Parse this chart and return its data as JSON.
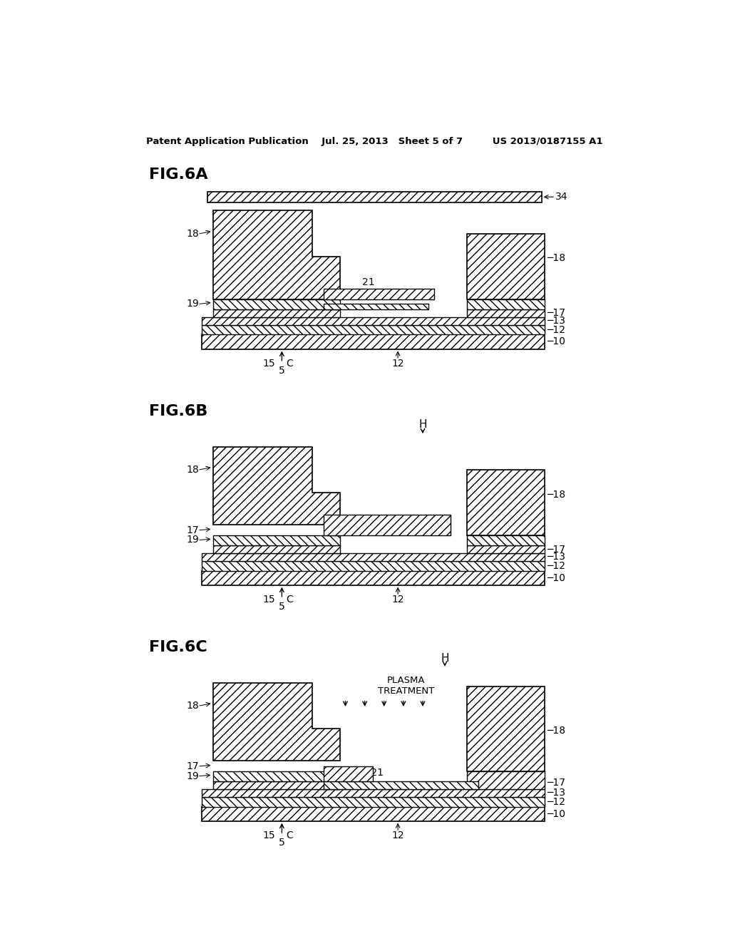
{
  "bg_color": "#ffffff",
  "header_text": "Patent Application Publication    Jul. 25, 2013   Sheet 5 of 7         US 2013/0187155 A1",
  "fig_labels": [
    "FIG.6A",
    "FIG.6B",
    "FIG.6C"
  ],
  "plasma_text": "PLASMA\nTREATMENT"
}
